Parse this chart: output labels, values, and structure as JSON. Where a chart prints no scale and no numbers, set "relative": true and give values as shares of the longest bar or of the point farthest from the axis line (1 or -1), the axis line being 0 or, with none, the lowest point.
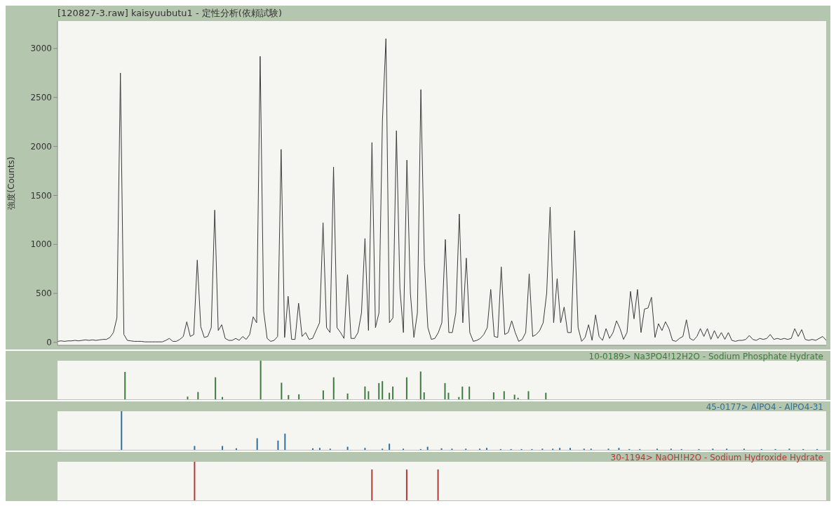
{
  "chart_data": [
    {
      "type": "line",
      "title": "[120827-3.raw] kaisyuubutu1 - 定性分析(依頼試験)",
      "ylabel": "強度(Counts)",
      "color": "#3a3a3a",
      "ylim": [
        -30,
        3280
      ],
      "yticks": [
        0,
        500,
        1000,
        1500,
        2000,
        2500,
        3000
      ],
      "categories": [
        null,
        null,
        null,
        null,
        null,
        null,
        null,
        null,
        null,
        null,
        null,
        null,
        null,
        null,
        null,
        null,
        null,
        null,
        null,
        null,
        null,
        null,
        null,
        null,
        null,
        null,
        null,
        null,
        null,
        null,
        null,
        null,
        null,
        null,
        null,
        null,
        null,
        null,
        null,
        null,
        null,
        null,
        null,
        null,
        null,
        null,
        null,
        null,
        null,
        null,
        null,
        null,
        null,
        null,
        null,
        null,
        null,
        null,
        null,
        null,
        null,
        null,
        null,
        null,
        null,
        null,
        null,
        null,
        null,
        null,
        null,
        null,
        null,
        null,
        null,
        null,
        null,
        null,
        null,
        null,
        null,
        null,
        null,
        null,
        null,
        null,
        null,
        null,
        null,
        null,
        null,
        null,
        null,
        null,
        null,
        null,
        null,
        null,
        null,
        null,
        null,
        null,
        null,
        null,
        null,
        null,
        null,
        null,
        null,
        null,
        null,
        null,
        null,
        null,
        null,
        null,
        null,
        null,
        null,
        null,
        null,
        null,
        null,
        null,
        null,
        null,
        null,
        null,
        null,
        null,
        null,
        null,
        null,
        null,
        null,
        null,
        null,
        null,
        null,
        null,
        null,
        null,
        null,
        null,
        null,
        null,
        null,
        null,
        null,
        null,
        null,
        null,
        null,
        null,
        null,
        null,
        null,
        null,
        null,
        null,
        null,
        null,
        null,
        null,
        null,
        null,
        null,
        null,
        null,
        null,
        null,
        null,
        null,
        null,
        null,
        null,
        null,
        null,
        null,
        null,
        null,
        null,
        null,
        null,
        null,
        null,
        null,
        null,
        null,
        null,
        null,
        null,
        null,
        null,
        null,
        null,
        null,
        null,
        null,
        null,
        null,
        null,
        null,
        null,
        null,
        null,
        null,
        null,
        null,
        null,
        null,
        null,
        null,
        null,
        null,
        null,
        null,
        null,
        null,
        null,
        null
      ],
      "values": [
        10,
        15,
        10,
        15,
        15,
        20,
        15,
        20,
        25,
        20,
        25,
        20,
        25,
        30,
        30,
        50,
        100,
        250,
        2750,
        80,
        20,
        15,
        10,
        10,
        10,
        5,
        5,
        5,
        5,
        5,
        5,
        20,
        40,
        10,
        10,
        30,
        60,
        210,
        60,
        80,
        840,
        160,
        50,
        60,
        150,
        1350,
        120,
        180,
        40,
        20,
        20,
        40,
        20,
        60,
        30,
        80,
        260,
        200,
        2920,
        320,
        40,
        10,
        20,
        60,
        1970,
        50,
        470,
        30,
        30,
        400,
        60,
        100,
        30,
        40,
        120,
        200,
        1220,
        150,
        100,
        1790,
        150,
        100,
        40,
        690,
        40,
        40,
        100,
        300,
        1060,
        120,
        2040,
        150,
        300,
        2270,
        3100,
        200,
        250,
        2160,
        550,
        100,
        1860,
        500,
        50,
        300,
        2580,
        820,
        150,
        30,
        40,
        100,
        200,
        1050,
        100,
        100,
        300,
        1310,
        200,
        860,
        100,
        10,
        20,
        40,
        80,
        150,
        540,
        60,
        50,
        770,
        80,
        100,
        220,
        100,
        10,
        30,
        100,
        700,
        60,
        80,
        120,
        200,
        500,
        1380,
        200,
        650,
        200,
        360,
        100,
        100,
        1140,
        150,
        10,
        50,
        180,
        20,
        280,
        60,
        20,
        140,
        40,
        100,
        220,
        140,
        30,
        100,
        520,
        240,
        540,
        100,
        340,
        350,
        460,
        50,
        190,
        120,
        210,
        140,
        20,
        10,
        40,
        60,
        230,
        40,
        20,
        60,
        140,
        60,
        140,
        30,
        120,
        40,
        100,
        30,
        100,
        20,
        10,
        20,
        20,
        30,
        70,
        30,
        20,
        40,
        30,
        40,
        80,
        30,
        40,
        30,
        40,
        30,
        40,
        140,
        60,
        130,
        30,
        20,
        30,
        20,
        40,
        60,
        20
      ]
    },
    {
      "type": "bar",
      "relative": true,
      "title": "10-0189> Na3PO4!12H2O - Sodium Phosphate Hydrate",
      "color": "#3d7a3d",
      "categories": [
        null,
        null,
        null,
        null,
        null,
        null,
        null,
        null,
        null,
        null,
        null,
        null,
        null,
        null,
        null,
        null,
        null,
        null,
        null,
        null,
        null,
        null,
        null,
        null,
        null,
        null,
        null,
        null,
        null,
        null,
        null,
        null,
        null,
        null,
        null,
        null,
        null,
        null,
        null,
        null,
        null,
        null,
        null,
        null,
        null,
        null,
        null,
        null,
        null,
        null,
        null,
        null,
        null,
        null,
        null,
        null,
        null,
        null,
        null,
        null,
        null,
        null,
        null,
        null,
        null,
        null,
        null,
        null,
        null,
        null,
        null,
        null,
        null,
        null,
        null,
        null,
        null,
        null,
        null,
        null,
        null,
        null,
        null,
        null,
        null,
        null,
        null,
        null,
        null,
        null,
        null,
        null,
        null,
        null,
        null,
        null,
        null,
        null,
        null,
        null,
        null,
        null,
        null,
        null,
        null,
        null,
        null,
        null,
        null,
        null,
        null,
        null,
        null,
        null,
        null,
        null,
        null,
        null,
        null,
        null,
        null,
        null,
        null,
        null,
        null,
        null,
        null,
        null,
        null,
        null,
        null,
        null,
        null,
        null,
        null,
        null,
        null,
        null,
        null,
        null,
        null,
        null,
        null,
        null,
        null,
        null,
        null,
        null,
        null,
        null,
        null,
        null,
        null,
        null,
        null,
        null,
        null,
        null,
        null,
        null,
        null,
        null,
        null,
        null,
        null,
        null,
        null,
        null,
        null,
        null,
        null,
        null,
        null,
        null,
        null,
        null,
        null,
        null,
        null,
        null,
        null,
        null,
        null,
        null,
        null,
        null,
        null,
        null,
        null,
        null,
        null,
        null,
        null,
        null,
        null,
        null,
        null,
        null,
        null,
        null,
        null,
        null,
        null,
        null,
        null,
        null,
        null,
        null,
        null,
        null,
        null,
        null,
        null,
        null,
        null,
        null,
        null,
        null,
        null,
        null,
        null
      ],
      "values": [
        null,
        null,
        null,
        null,
        null,
        null,
        null,
        null,
        null,
        null,
        null,
        null,
        null,
        null,
        null,
        null,
        null,
        null,
        null,
        0.71,
        null,
        null,
        null,
        null,
        null,
        null,
        null,
        null,
        null,
        null,
        null,
        null,
        null,
        null,
        null,
        null,
        null,
        0.07,
        null,
        null,
        0.19,
        null,
        null,
        null,
        null,
        0.57,
        null,
        0.06,
        null,
        null,
        null,
        null,
        null,
        null,
        null,
        null,
        null,
        null,
        1,
        null,
        null,
        null,
        null,
        null,
        0.43,
        null,
        0.11,
        null,
        null,
        0.13,
        null,
        null,
        null,
        null,
        null,
        null,
        0.23,
        null,
        null,
        0.57,
        null,
        null,
        null,
        0.15,
        null,
        null,
        null,
        null,
        0.33,
        0.21,
        null,
        null,
        0.42,
        0.47,
        null,
        0.17,
        0.33,
        null,
        null,
        null,
        0.57,
        null,
        null,
        null,
        0.72,
        0.18,
        null,
        null,
        null,
        null,
        null,
        0.42,
        0.17,
        null,
        null,
        0.06,
        0.33,
        null,
        0.33,
        null,
        null,
        null,
        null,
        null,
        null,
        0.18,
        null,
        null,
        0.21,
        null,
        null,
        0.12,
        0.04,
        null,
        null,
        0.21,
        null,
        null,
        null,
        null,
        0.17,
        null,
        null,
        null,
        null,
        null,
        null,
        null,
        null,
        null,
        null,
        null,
        null,
        null,
        null,
        null,
        null,
        null,
        null,
        null,
        null,
        null,
        null,
        null,
        null,
        null,
        null,
        null,
        null,
        null,
        null,
        null,
        null,
        null,
        null,
        null,
        null,
        null,
        null,
        null,
        null,
        null,
        null,
        null,
        null,
        null,
        null,
        null,
        null,
        null,
        null,
        null,
        null,
        null,
        null,
        null,
        null,
        null,
        null,
        null,
        null,
        null,
        null,
        null,
        null,
        null,
        null,
        null,
        null,
        null,
        null,
        null,
        null,
        null,
        null,
        null,
        null,
        null,
        null,
        null,
        null
      ]
    },
    {
      "type": "bar",
      "relative": true,
      "title": "45-0177> AlPO4 - AlPO4-31",
      "color": "#2f6f9a",
      "categories": [
        null,
        null,
        null,
        null,
        null,
        null,
        null,
        null,
        null,
        null,
        null,
        null,
        null,
        null,
        null,
        null,
        null,
        null,
        null,
        null,
        null,
        null,
        null,
        null,
        null,
        null,
        null,
        null,
        null,
        null,
        null,
        null,
        null,
        null,
        null,
        null,
        null,
        null,
        null,
        null,
        null,
        null,
        null,
        null,
        null,
        null,
        null,
        null,
        null,
        null,
        null,
        null,
        null,
        null,
        null,
        null,
        null,
        null,
        null,
        null,
        null,
        null,
        null,
        null,
        null,
        null,
        null,
        null,
        null,
        null,
        null,
        null,
        null,
        null,
        null,
        null,
        null,
        null,
        null,
        null,
        null,
        null,
        null,
        null,
        null,
        null,
        null,
        null,
        null,
        null,
        null,
        null,
        null,
        null,
        null,
        null,
        null,
        null,
        null,
        null,
        null,
        null,
        null,
        null,
        null,
        null,
        null,
        null,
        null,
        null,
        null,
        null,
        null,
        null,
        null,
        null,
        null,
        null,
        null,
        null,
        null,
        null,
        null,
        null,
        null,
        null,
        null,
        null,
        null,
        null,
        null,
        null,
        null,
        null,
        null,
        null,
        null,
        null,
        null,
        null,
        null,
        null,
        null,
        null,
        null,
        null,
        null,
        null,
        null,
        null,
        null,
        null,
        null,
        null,
        null,
        null,
        null,
        null,
        null,
        null,
        null,
        null,
        null,
        null,
        null,
        null,
        null,
        null,
        null,
        null,
        null,
        null,
        null,
        null,
        null,
        null,
        null,
        null,
        null,
        null,
        null,
        null,
        null,
        null,
        null,
        null,
        null,
        null,
        null,
        null,
        null,
        null,
        null,
        null,
        null,
        null,
        null,
        null,
        null,
        null,
        null,
        null,
        null,
        null,
        null,
        null,
        null,
        null,
        null,
        null,
        null,
        null,
        null,
        null,
        null,
        null,
        null,
        null,
        null,
        null,
        null
      ],
      "values": [
        null,
        null,
        null,
        null,
        null,
        null,
        null,
        null,
        null,
        null,
        null,
        null,
        null,
        null,
        null,
        null,
        null,
        null,
        1,
        null,
        null,
        null,
        null,
        null,
        null,
        null,
        null,
        null,
        null,
        null,
        null,
        null,
        null,
        null,
        null,
        null,
        null,
        null,
        null,
        0.1,
        null,
        null,
        null,
        null,
        null,
        null,
        null,
        0.1,
        null,
        null,
        null,
        0.04,
        null,
        null,
        null,
        null,
        null,
        0.3,
        null,
        null,
        null,
        null,
        null,
        0.24,
        null,
        0.42,
        null,
        null,
        null,
        null,
        null,
        null,
        null,
        0.04,
        null,
        0.05,
        null,
        null,
        0.03,
        null,
        null,
        null,
        null,
        0.08,
        null,
        null,
        null,
        null,
        0.05,
        null,
        null,
        null,
        null,
        0.03,
        null,
        0.16,
        null,
        null,
        null,
        0.03,
        null,
        null,
        null,
        null,
        0.02,
        null,
        0.08,
        null,
        null,
        null,
        0.04,
        null,
        null,
        0.03,
        null,
        null,
        null,
        0.03,
        null,
        null,
        null,
        0.03,
        null,
        0.05,
        null,
        null,
        null,
        0.02,
        null,
        null,
        0.02,
        null,
        null,
        0.02,
        null,
        null,
        0.02,
        null,
        null,
        0.03,
        null,
        null,
        0.03,
        null,
        0.05,
        null,
        null,
        0.05,
        null,
        null,
        null,
        0.03,
        null,
        0.03,
        null,
        null,
        null,
        null,
        0.03,
        null,
        null,
        0.05,
        null,
        null,
        0.02,
        null,
        null,
        0.02,
        null,
        null,
        null,
        null,
        0.03,
        null,
        null,
        null,
        0.03,
        null,
        null,
        0.02,
        null,
        null,
        null,
        null,
        0.02,
        null,
        null,
        null,
        0.03,
        null,
        null,
        null,
        0.03,
        null,
        null,
        null,
        null,
        0.03,
        null,
        null,
        null,
        null,
        0.02,
        null,
        null,
        null,
        0.02,
        null,
        null,
        null,
        0.03,
        null,
        null,
        null,
        0.02,
        null,
        null,
        null,
        0.02,
        null,
        null
      ]
    },
    {
      "type": "bar",
      "relative": true,
      "title": "30-1194> NaOH!H2O - Sodium Hydroxide Hydrate",
      "color": "#b03a3a",
      "categories": [
        null,
        null,
        null,
        null,
        null,
        null,
        null,
        null,
        null,
        null,
        null,
        null,
        null,
        null,
        null,
        null,
        null,
        null,
        null,
        null,
        null,
        null,
        null,
        null,
        null,
        null,
        null,
        null,
        null,
        null,
        null,
        null,
        null,
        null,
        null,
        null,
        null,
        null,
        null,
        null,
        null,
        null,
        null,
        null,
        null,
        null,
        null,
        null,
        null,
        null,
        null,
        null,
        null,
        null,
        null,
        null,
        null,
        null,
        null,
        null,
        null,
        null,
        null,
        null,
        null,
        null,
        null,
        null,
        null,
        null,
        null,
        null,
        null,
        null,
        null,
        null,
        null,
        null,
        null,
        null,
        null,
        null,
        null,
        null,
        null,
        null,
        null,
        null,
        null,
        null,
        null,
        null,
        null,
        null,
        null,
        null,
        null,
        null,
        null,
        null,
        null,
        null,
        null,
        null,
        null,
        null,
        null,
        null,
        null,
        null,
        null,
        null,
        null,
        null,
        null,
        null,
        null,
        null,
        null,
        null,
        null,
        null,
        null,
        null,
        null,
        null,
        null,
        null,
        null,
        null,
        null,
        null,
        null,
        null,
        null,
        null,
        null,
        null,
        null,
        null,
        null,
        null,
        null,
        null,
        null,
        null,
        null,
        null,
        null,
        null,
        null,
        null,
        null,
        null,
        null,
        null,
        null,
        null,
        null,
        null,
        null,
        null,
        null,
        null,
        null,
        null,
        null,
        null,
        null,
        null,
        null,
        null,
        null,
        null,
        null,
        null,
        null,
        null,
        null,
        null,
        null,
        null,
        null,
        null,
        null,
        null,
        null,
        null,
        null,
        null,
        null,
        null,
        null,
        null,
        null,
        null,
        null,
        null,
        null,
        null,
        null,
        null,
        null,
        null,
        null,
        null,
        null,
        null,
        null,
        null,
        null,
        null,
        null,
        null,
        null,
        null,
        null,
        null,
        null,
        null,
        null
      ],
      "values": [
        null,
        null,
        null,
        null,
        null,
        null,
        null,
        null,
        null,
        null,
        null,
        null,
        null,
        null,
        null,
        null,
        null,
        null,
        null,
        null,
        null,
        null,
        null,
        null,
        null,
        null,
        null,
        null,
        null,
        null,
        null,
        null,
        null,
        null,
        null,
        null,
        null,
        null,
        null,
        1,
        null,
        null,
        null,
        null,
        null,
        null,
        null,
        null,
        null,
        null,
        null,
        null,
        null,
        null,
        null,
        null,
        null,
        null,
        null,
        null,
        null,
        null,
        null,
        null,
        null,
        null,
        null,
        null,
        null,
        null,
        null,
        null,
        null,
        null,
        null,
        null,
        null,
        null,
        null,
        null,
        null,
        null,
        null,
        null,
        null,
        null,
        null,
        null,
        null,
        null,
        0.8,
        null,
        null,
        null,
        null,
        null,
        null,
        null,
        null,
        null,
        0.8,
        null,
        null,
        null,
        null,
        null,
        null,
        null,
        null,
        0.8,
        null,
        null,
        null,
        null,
        null,
        null,
        null,
        null,
        null,
        null,
        null,
        null,
        null,
        null,
        null,
        null,
        null,
        null,
        null,
        null,
        null,
        null,
        null,
        null,
        null,
        null,
        null,
        null,
        null,
        null,
        null,
        null,
        null,
        null,
        null,
        null,
        null,
        null,
        null,
        null,
        null,
        null,
        null,
        null,
        null,
        null,
        null,
        null,
        null,
        null,
        null,
        null,
        null,
        null,
        null,
        null,
        null,
        null,
        null,
        null,
        null,
        null,
        null,
        null,
        null,
        null,
        null,
        null,
        null,
        null,
        null,
        null,
        null,
        null,
        null,
        null,
        null,
        null,
        null,
        null,
        null,
        null,
        null,
        null,
        null,
        null,
        null,
        null,
        null,
        null,
        null,
        null,
        null,
        null,
        null,
        null,
        null,
        null,
        null,
        null,
        null,
        null,
        null,
        null,
        null,
        null,
        null,
        null,
        null,
        null,
        null
      ]
    }
  ]
}
